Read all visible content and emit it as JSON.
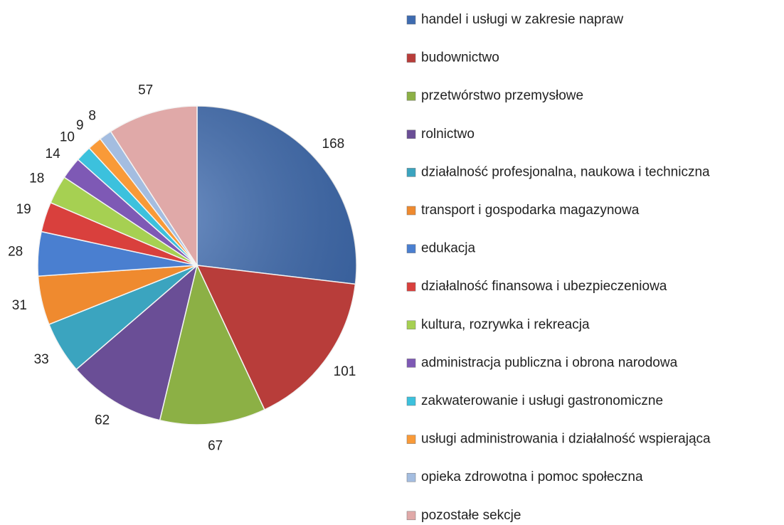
{
  "chart_data": {
    "type": "pie",
    "categories": [
      "handel i usługi w zakresie napraw",
      "budownictwo",
      "przetwórstwo przemysłowe",
      "rolnictwo",
      "działalność profesjonalna, naukowa i techniczna",
      "transport i gospodarka magazynowa",
      "edukacja",
      "działalność finansowa i ubezpieczeniowa",
      "kultura, rozrywka i rekreacja",
      "administracja publiczna i obrona narodowa",
      "zakwaterowanie i usługi gastronomiczne",
      "usługi administrowania i działalność wspierająca",
      "opieka zdrowotna i pomoc społeczna",
      "pozostałe sekcje"
    ],
    "values": [
      168,
      101,
      67,
      62,
      33,
      31,
      28,
      19,
      18,
      14,
      10,
      9,
      8,
      57
    ],
    "colors": [
      "#3e6bb0",
      "#b83d3a",
      "#8cb045",
      "#6a4e96",
      "#3ba4bf",
      "#ef8a2f",
      "#4a7fd0",
      "#d9403d",
      "#a6d052",
      "#7e59b5",
      "#3cc1dd",
      "#f99a38",
      "#a4bde0",
      "#e0a9a8"
    ]
  }
}
